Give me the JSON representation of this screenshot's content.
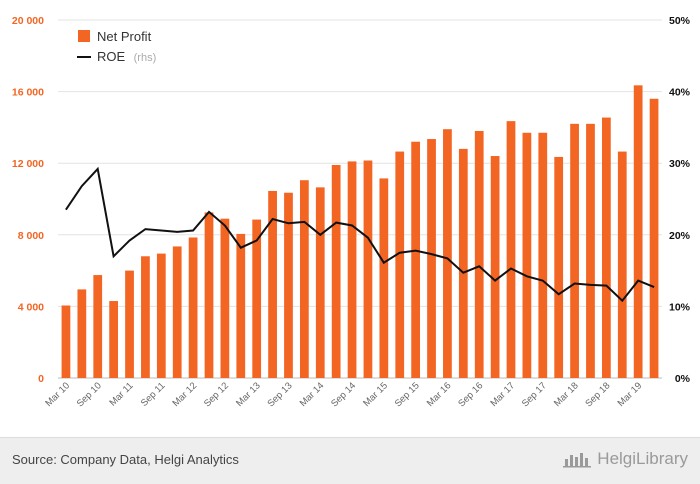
{
  "chart_data": {
    "type": "bar",
    "categories": [
      "Mar 10",
      "Jun 10",
      "Sep 10",
      "Dec 10",
      "Mar 11",
      "Jun 11",
      "Sep 11",
      "Dec 11",
      "Mar 12",
      "Jun 12",
      "Sep 12",
      "Dec 12",
      "Mar 13",
      "Jun 13",
      "Sep 13",
      "Dec 13",
      "Mar 14",
      "Jun 14",
      "Sep 14",
      "Dec 14",
      "Mar 15",
      "Jun 15",
      "Sep 15",
      "Dec 15",
      "Mar 16",
      "Jun 16",
      "Sep 16",
      "Dec 16",
      "Mar 17",
      "Jun 17",
      "Sep 17",
      "Dec 17",
      "Mar 18",
      "Jun 18",
      "Sep 18",
      "Dec 18",
      "Mar 19",
      "Jun 19"
    ],
    "x_tick_labels": [
      "Mar 10",
      "Sep 10",
      "Mar 11",
      "Sep 11",
      "Mar 12",
      "Sep 12",
      "Mar 13",
      "Sep 13",
      "Mar 14",
      "Sep 14",
      "Mar 15",
      "Sep 15",
      "Mar 16",
      "Sep 16",
      "Mar 17",
      "Sep 17",
      "Mar 18",
      "Sep 18",
      "Mar 19"
    ],
    "series": [
      {
        "name": "Net Profit",
        "type": "bar",
        "axis": "left",
        "color": "#f26522",
        "values": [
          4050,
          4950,
          5750,
          4300,
          6000,
          6800,
          6950,
          7350,
          7850,
          9250,
          8900,
          8050,
          8850,
          10450,
          10350,
          11050,
          10650,
          11900,
          12100,
          12150,
          11150,
          12650,
          13200,
          13350,
          13900,
          12800,
          13800,
          12400,
          14350,
          13700,
          13700,
          12350,
          14200,
          14200,
          14550,
          12650,
          16350,
          15600
        ]
      },
      {
        "name": "ROE",
        "name_suffix": "(rhs)",
        "type": "line",
        "axis": "right",
        "color": "#111111",
        "values": [
          23.5,
          26.8,
          29.2,
          17.0,
          19.2,
          20.8,
          20.6,
          20.4,
          20.6,
          23.2,
          21.3,
          18.2,
          19.2,
          22.2,
          21.6,
          21.8,
          20.0,
          21.7,
          21.3,
          19.6,
          16.1,
          17.5,
          17.8,
          17.3,
          16.7,
          14.7,
          15.6,
          13.6,
          15.3,
          14.2,
          13.6,
          11.7,
          13.2,
          13.0,
          12.9,
          10.8,
          13.6,
          12.7
        ]
      }
    ],
    "y_left": {
      "min": 0,
      "max": 20000,
      "ticks": [
        "0",
        "4 000",
        "8 000",
        "12 000",
        "16 000",
        "20 000"
      ],
      "tick_values": [
        0,
        4000,
        8000,
        12000,
        16000,
        20000
      ]
    },
    "y_right": {
      "min": 0,
      "max": 50,
      "ticks": [
        "0%",
        "10%",
        "20%",
        "30%",
        "40%",
        "50%"
      ],
      "tick_values": [
        0,
        10,
        20,
        30,
        40,
        50
      ]
    },
    "grid": true,
    "legend_position": "top-left"
  },
  "colors": {
    "bar": "#f26522",
    "line": "#111111",
    "grid": "#e3e3e3",
    "left_axis_text": "#f26522",
    "footer_bg": "#eeeeee"
  },
  "footer": {
    "source": "Source: Company Data, Helgi Analytics",
    "brand": "HelgiLibrary",
    "brand_icon": "helgi-logo-icon"
  }
}
